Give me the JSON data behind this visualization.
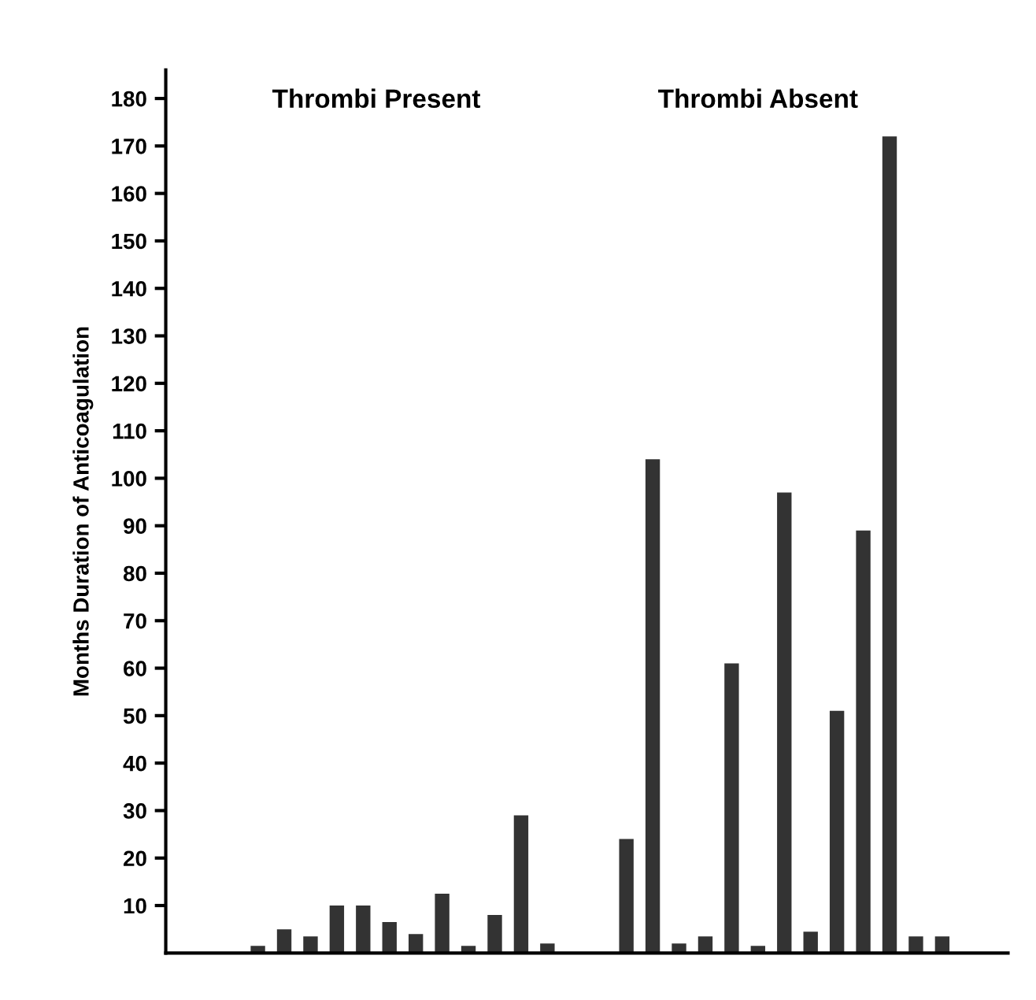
{
  "chart_data": {
    "type": "bar",
    "ylabel": "Months Duration of Anticoagulation",
    "annotations": [
      "Thrombi Present",
      "Thrombi Absent"
    ],
    "categories": [
      null,
      null,
      null,
      null,
      null,
      null,
      null,
      null,
      null,
      null,
      null,
      null,
      null,
      null,
      null,
      null,
      null,
      null,
      null,
      null,
      null,
      null,
      null,
      null,
      null,
      null,
      null,
      null,
      null,
      null,
      null,
      null
    ],
    "series": [
      {
        "color": "#333333",
        "values": [
          null,
          null,
          null,
          1.5,
          5,
          3.5,
          10,
          10,
          6.5,
          4,
          12.5,
          1.5,
          8,
          29,
          2,
          null,
          null,
          24,
          104,
          2,
          3.5,
          61,
          1.5,
          97,
          4.5,
          51,
          89,
          172,
          3.5,
          3.5,
          null,
          null
        ]
      }
    ],
    "ylim": [
      0,
      186
    ],
    "yticks": [
      10,
      20,
      30,
      40,
      50,
      60,
      70,
      80,
      90,
      100,
      110,
      120,
      130,
      140,
      150,
      160,
      170,
      180
    ],
    "tick_labels": "y",
    "grid": false
  }
}
